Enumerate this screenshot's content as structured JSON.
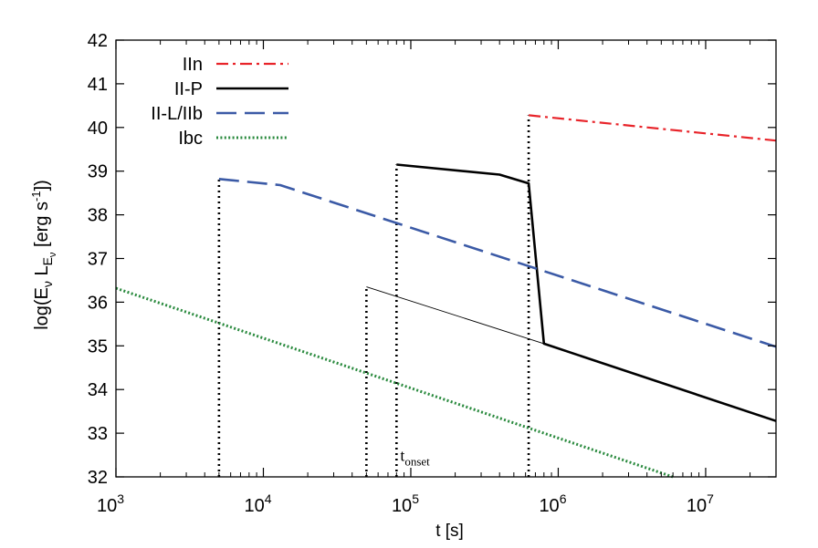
{
  "chart_data": {
    "type": "line",
    "xlabel": "t [s]",
    "ylabel": "log(E_ν L_E_ν [erg s^-1])",
    "xscale": "log",
    "xlim": [
      1000,
      30000000
    ],
    "ylim": [
      32,
      42
    ],
    "grid": false,
    "legend_position": "top-left",
    "x_ticks": [
      {
        "value": 1000,
        "base": "10",
        "exp": "3"
      },
      {
        "value": 10000,
        "base": "10",
        "exp": "4"
      },
      {
        "value": 100000,
        "base": "10",
        "exp": "5"
      },
      {
        "value": 1000000,
        "base": "10",
        "exp": "6"
      },
      {
        "value": 10000000,
        "base": "10",
        "exp": "7"
      }
    ],
    "y_ticks": [
      32,
      33,
      34,
      35,
      36,
      37,
      38,
      39,
      40,
      41,
      42
    ],
    "series": [
      {
        "name": "IIn",
        "color": "#e8242a",
        "style": "dash-dot",
        "points": [
          [
            630000,
            40.28
          ],
          [
            30000000,
            39.7
          ]
        ]
      },
      {
        "name": "II-P",
        "color": "#000000",
        "style": "solid",
        "points": [
          [
            80000,
            39.15
          ],
          [
            400000,
            38.92
          ],
          [
            630000,
            38.72
          ],
          [
            800000,
            35.05
          ],
          [
            30000000,
            33.28
          ]
        ]
      },
      {
        "name": "II-L/IIb",
        "color": "#3b5aa6",
        "style": "dashed",
        "points": [
          [
            5000,
            38.82
          ],
          [
            13000,
            38.68
          ],
          [
            30000000,
            34.98
          ]
        ]
      },
      {
        "name": "Ibc",
        "color": "#2a8a3e",
        "style": "dotted",
        "points": [
          [
            1000,
            36.32
          ],
          [
            6000000,
            32.0
          ]
        ]
      }
    ],
    "extra_lines": [
      {
        "label": "thin",
        "points": [
          [
            50000,
            36.35
          ],
          [
            800000,
            35.05
          ]
        ],
        "color": "#000000",
        "style": "thin"
      }
    ],
    "onset_markers": [
      {
        "x": 5000,
        "y_top": 38.82
      },
      {
        "x": 50000,
        "y_top": 36.35
      },
      {
        "x": 80000,
        "y_top": 39.15
      },
      {
        "x": 630000,
        "y_top": 40.28
      }
    ],
    "annotation": {
      "base": "t",
      "sub": "onset",
      "x": 80000,
      "y": 32.45
    }
  }
}
